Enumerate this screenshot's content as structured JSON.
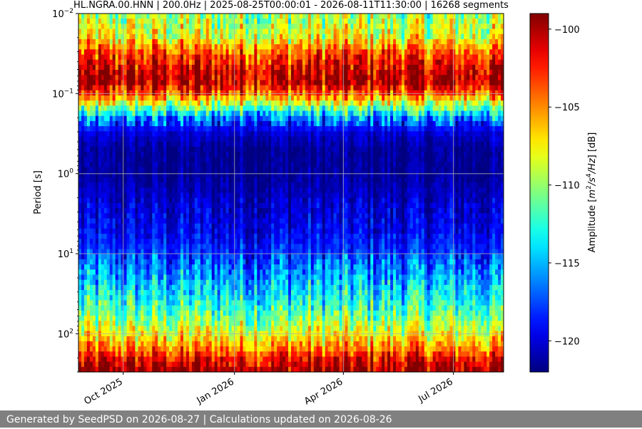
{
  "chart_data": {
    "type": "heatmap",
    "title": "HL.NGRA.00.HNN | 200.0Hz | 2025-08-25T00:00:01 - 2026-08-11T11:30:00 | 16268 segments",
    "xlabel": "",
    "ylabel": "Period [s]",
    "x_range": [
      "2025-08-25",
      "2026-08-11"
    ],
    "x_ticks": [
      {
        "date": "2025-10-01",
        "label": "Oct 2025"
      },
      {
        "date": "2026-01-01",
        "label": "Jan 2026"
      },
      {
        "date": "2026-04-01",
        "label": "Apr 2026"
      },
      {
        "date": "2026-07-01",
        "label": "Jul 2026"
      }
    ],
    "y_scale": "log",
    "y_inverted": true,
    "ylim": [
      0.01,
      300
    ],
    "y_ticks": [
      {
        "value": 0.01,
        "base": "10",
        "exp": "−2"
      },
      {
        "value": 0.1,
        "base": "10",
        "exp": "−1"
      },
      {
        "value": 1,
        "base": "10",
        "exp": "0"
      },
      {
        "value": 10,
        "base": "10",
        "exp": "1"
      },
      {
        "value": 100,
        "base": "10",
        "exp": "2"
      }
    ],
    "grid": true,
    "colormap": "jet",
    "colorbar": {
      "label_parts": [
        "Amplitude [",
        "m",
        "2",
        "/s",
        "4",
        "/Hz",
        "] [dB]"
      ],
      "range": [
        -122,
        -99
      ],
      "ticks": [
        -100,
        -105,
        -110,
        -115,
        -120
      ],
      "tick_labels": [
        "−100",
        "−105",
        "−110",
        "−115",
        "−120"
      ]
    },
    "amplitude_profile": [
      {
        "period": 0.01,
        "db": -110
      },
      {
        "period": 0.02,
        "db": -108
      },
      {
        "period": 0.03,
        "db": -104
      },
      {
        "period": 0.05,
        "db": -101
      },
      {
        "period": 0.07,
        "db": -100
      },
      {
        "period": 0.1,
        "db": -104
      },
      {
        "period": 0.15,
        "db": -111
      },
      {
        "period": 0.2,
        "db": -116
      },
      {
        "period": 0.3,
        "db": -120
      },
      {
        "period": 0.5,
        "db": -121.5
      },
      {
        "period": 1,
        "db": -121.5
      },
      {
        "period": 2,
        "db": -120.5
      },
      {
        "period": 5,
        "db": -119.5
      },
      {
        "period": 10,
        "db": -118
      },
      {
        "period": 20,
        "db": -115.5
      },
      {
        "period": 50,
        "db": -112
      },
      {
        "period": 100,
        "db": -108
      },
      {
        "period": 150,
        "db": -105
      },
      {
        "period": 200,
        "db": -102
      },
      {
        "period": 300,
        "db": -99.5
      }
    ]
  },
  "footer": {
    "text": "Generated by SeedPSD on 2026-08-27 | Calculations updated on 2026-08-26"
  }
}
